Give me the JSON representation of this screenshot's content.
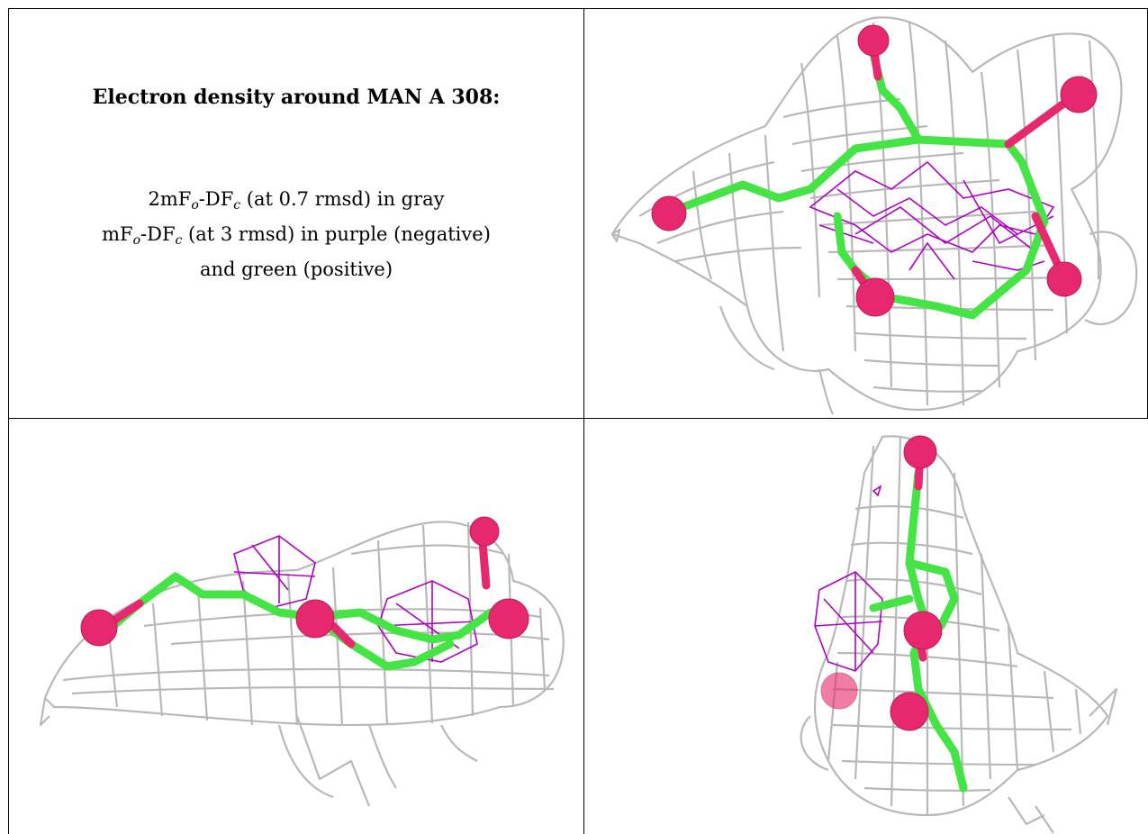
{
  "title": "Electron density around MAN A 308:",
  "legend": {
    "line1": {
      "prefix": "2mF",
      "sub1": "o",
      "mid": "-DF",
      "sub2": "c",
      "suffix": " (at 0.7 rmsd) in gray"
    },
    "line2": {
      "prefix": "mF",
      "sub1": "o",
      "mid": "-DF",
      "sub2": "c",
      "suffix": " (at 3 rmsd) in purple (negative)"
    },
    "line3": "and green (positive)"
  },
  "colors": {
    "mesh_2fofc": "#b8b8b8",
    "mesh_negative": "#b000c8",
    "carbon": "#44e444",
    "oxygen": "#e8286e"
  }
}
